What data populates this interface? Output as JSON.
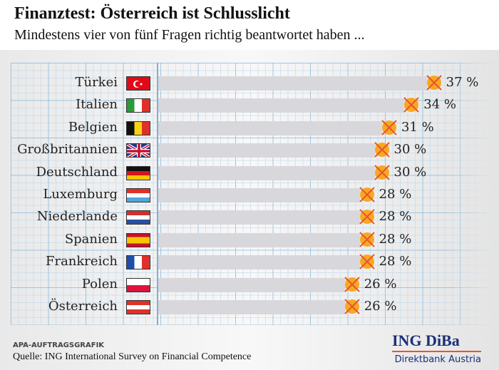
{
  "title": "Finanztest: Österreich ist Schlusslicht",
  "subtitle": "Mindestens vier von fünf Fragen richtig beantwortet haben ...",
  "chart_data": {
    "type": "bar",
    "orientation": "horizontal",
    "unit": "%",
    "categories": [
      "Türkei",
      "Italien",
      "Belgien",
      "Großbritannien",
      "Deutschland",
      "Luxemburg",
      "Niederlande",
      "Spanien",
      "Frankreich",
      "Polen",
      "Österreich"
    ],
    "values": [
      37,
      34,
      31,
      30,
      30,
      28,
      28,
      28,
      28,
      26,
      26
    ],
    "labels": [
      "37 %",
      "34 %",
      "31 %",
      "30 %",
      "30 %",
      "28 %",
      "28 %",
      "28 %",
      "28 %",
      "26 %",
      "26 %"
    ],
    "flags": [
      "turkey",
      "italy",
      "belgium",
      "uk",
      "germany",
      "luxembourg",
      "netherlands",
      "spain",
      "france",
      "poland",
      "austria"
    ],
    "bar_color": "#d8d8dc",
    "marker_color": "#f7a823",
    "cross_color": "#e8552b",
    "grid": true
  },
  "footer": {
    "credit": "APA-AUFTRAGSGRAFIK",
    "source": "Quelle: ING International Survey on Financial Competence"
  },
  "logo": {
    "name": "ING DiBa",
    "tagline": "Direktbank Austria"
  }
}
